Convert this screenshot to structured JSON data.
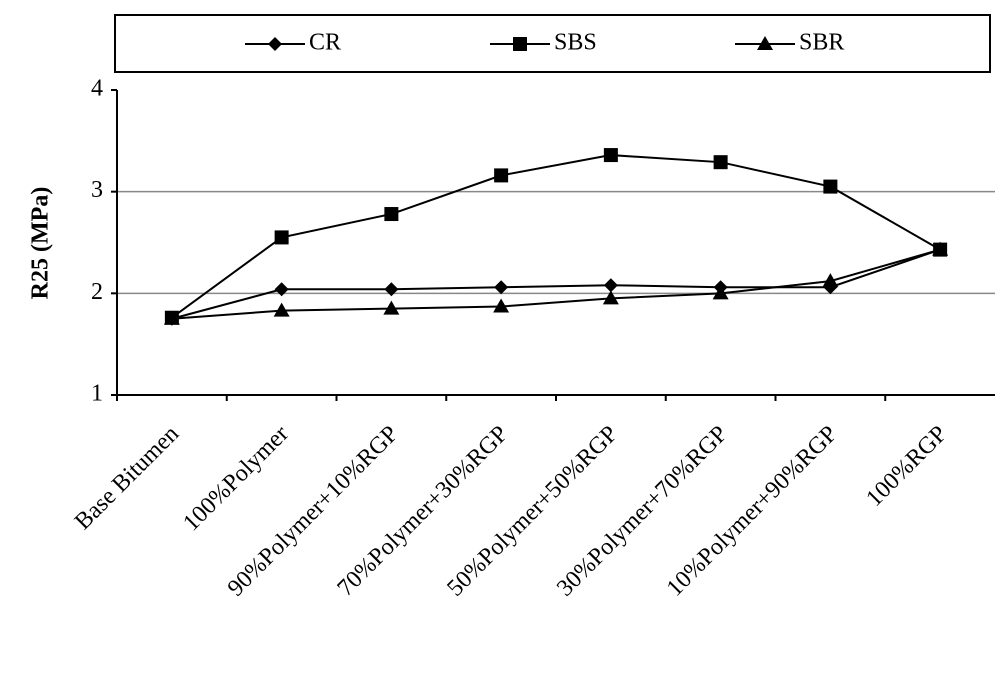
{
  "chart_data": {
    "type": "line",
    "y_label": "R25 (MPa)",
    "categories": [
      "Base Bitumen",
      "100%Polymer",
      "90%Polymer+10%RGP",
      "70%Polymer+30%RGP",
      "50%Polymer+50%RGP",
      "30%Polymer+70%RGP",
      "10%Polymer+90%RGP",
      "100%RGP"
    ],
    "series": [
      {
        "name": "CR",
        "color": "#000000",
        "marker": "diamond",
        "values": [
          1.75,
          2.04,
          2.04,
          2.06,
          2.08,
          2.06,
          2.06,
          2.43
        ]
      },
      {
        "name": "SBS",
        "color": "#000000",
        "marker": "square",
        "values": [
          1.76,
          2.55,
          2.78,
          3.16,
          3.36,
          3.29,
          3.05,
          2.43
        ]
      },
      {
        "name": "SBR",
        "color": "#000000",
        "marker": "triangle",
        "values": [
          1.75,
          1.83,
          1.85,
          1.87,
          1.95,
          2.0,
          2.12,
          2.43
        ]
      }
    ],
    "ylim": [
      1,
      4
    ],
    "yticks": [
      1,
      2,
      3,
      4
    ],
    "grid": true,
    "legend": "top"
  }
}
